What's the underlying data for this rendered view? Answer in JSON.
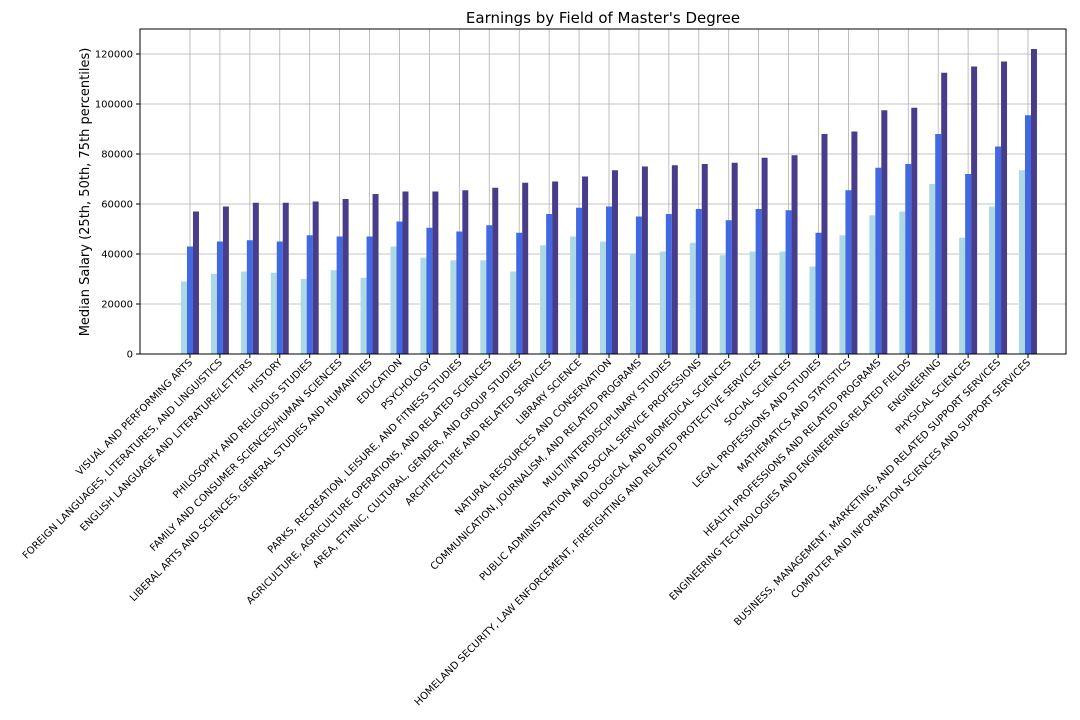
{
  "chart_data": {
    "type": "bar",
    "title": "Earnings by Field of Master's Degree",
    "xlabel": "",
    "ylabel": "Median Salary (25th, 50th, 75th percentiles)",
    "ylim": [
      0,
      130000
    ],
    "yticks": [
      0,
      20000,
      40000,
      60000,
      80000,
      100000,
      120000
    ],
    "grid": true,
    "legend": "none",
    "categories": [
      "VISUAL AND PERFORMING ARTS",
      "FOREIGN LANGUAGES, LITERATURES, AND LINGUISTICS",
      "ENGLISH LANGUAGE AND LITERATURE/LETTERS",
      "HISTORY",
      "PHILOSOPHY AND RELIGIOUS STUDIES",
      "FAMILY AND CONSUMER SCIENCES/HUMAN SCIENCES",
      "LIBERAL ARTS AND SCIENCES, GENERAL STUDIES AND HUMANITIES",
      "EDUCATION",
      "PSYCHOLOGY",
      "PARKS, RECREATION, LEISURE, AND FITNESS STUDIES",
      "AGRICULTURE, AGRICULTURE OPERATIONS, AND RELATED SCIENCES",
      "AREA, ETHNIC, CULTURAL, GENDER, AND GROUP STUDIES",
      "ARCHITECTURE AND RELATED SERVICES",
      "LIBRARY SCIENCE",
      "NATURAL RESOURCES AND CONSERVATION",
      "COMMUNICATION, JOURNALISM, AND RELATED PROGRAMS",
      "MULTI/INTERDISCIPLINARY STUDIES",
      "PUBLIC ADMINISTRATION AND SOCIAL SERVICE PROFESSIONS",
      "BIOLOGICAL AND BIOMEDICAL SCIENCES",
      "HOMELAND SECURITY, LAW ENFORCEMENT, FIREFIGHTING AND RELATED PROTECTIVE SERVICES",
      "SOCIAL SCIENCES",
      "LEGAL PROFESSIONS AND STUDIES",
      "MATHEMATICS AND STATISTICS",
      "HEALTH PROFESSIONS AND RELATED PROGRAMS",
      "ENGINEERING TECHNOLOGIES AND ENGINEERING-RELATED FIELDS",
      "ENGINEERING",
      "PHYSICAL SCIENCES",
      "BUSINESS, MANAGEMENT, MARKETING, AND RELATED SUPPORT SERVICES",
      "COMPUTER AND INFORMATION SCIENCES AND SUPPORT SERVICES"
    ],
    "series": [
      {
        "color": "#add8e6",
        "values": [
          29000,
          32000,
          33000,
          32500,
          30000,
          33500,
          30500,
          43000,
          38500,
          37500,
          37500,
          33000,
          43500,
          47000,
          45000,
          40000,
          41000,
          44500,
          39500,
          41000,
          41000,
          35000,
          47500,
          55500,
          57000,
          68000,
          46500,
          59000,
          73500
        ]
      },
      {
        "color": "#4169e1",
        "values": [
          43000,
          45000,
          45500,
          45000,
          47500,
          47000,
          47000,
          53000,
          50500,
          49000,
          51500,
          48500,
          56000,
          58500,
          59000,
          55000,
          56000,
          58000,
          53500,
          58000,
          57500,
          48500,
          65500,
          74500,
          76000,
          88000,
          72000,
          83000,
          95500
        ]
      },
      {
        "color": "#483d8b",
        "values": [
          57000,
          59000,
          60500,
          60500,
          61000,
          62000,
          64000,
          65000,
          65000,
          65500,
          66500,
          68500,
          69000,
          71000,
          73500,
          75000,
          75500,
          76000,
          76500,
          78500,
          79500,
          88000,
          89000,
          97500,
          98500,
          112500,
          115000,
          117000,
          122000
        ]
      }
    ]
  }
}
